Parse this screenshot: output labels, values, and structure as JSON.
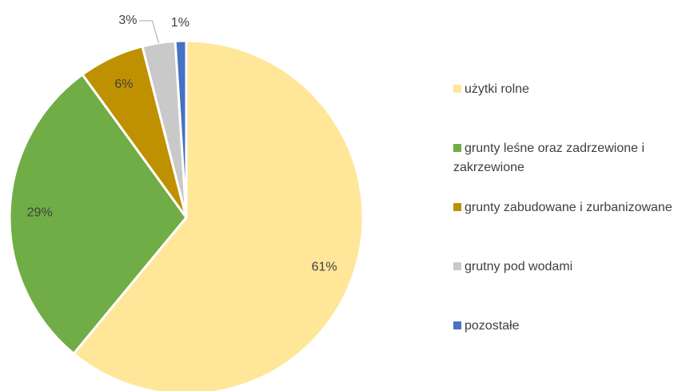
{
  "chart_data": {
    "type": "pie",
    "categories": [
      "użytki rolne",
      "grunty leśne oraz zadrzewione i zakrzewione",
      "grunty zabudowane i zurbanizowane",
      "grutny pod wodami",
      "pozostałe"
    ],
    "values": [
      61,
      29,
      6,
      3,
      1
    ],
    "value_labels": [
      "61%",
      "29%",
      "6%",
      "3%",
      "1%"
    ],
    "colors": [
      "#ffe699",
      "#70ad47",
      "#bf9000",
      "#c9c9c9",
      "#4472c4"
    ]
  }
}
